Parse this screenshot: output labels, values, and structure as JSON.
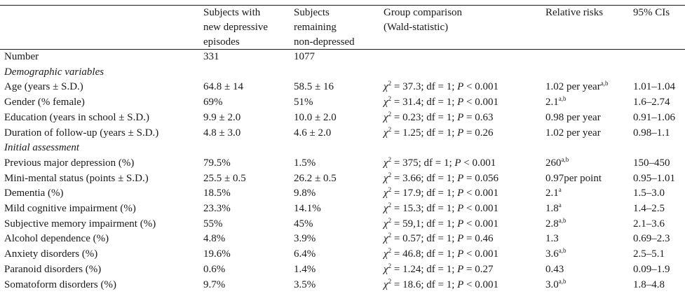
{
  "table": {
    "headers": [
      {
        "lines": []
      },
      {
        "lines": [
          "Subjects with",
          "new depressive",
          "episodes"
        ]
      },
      {
        "lines": [
          "Subjects",
          "remaining",
          "non-depressed"
        ]
      },
      {
        "lines": [
          "Group comparison",
          "(Wald-statistic)"
        ]
      },
      {
        "lines": [
          "Relative risks"
        ]
      },
      {
        "lines": [
          "95% CIs"
        ]
      }
    ],
    "rows": [
      {
        "type": "data",
        "label": "Number",
        "new": "331",
        "remaining": "1077",
        "chi": "",
        "df": "",
        "p_op": "",
        "p": "",
        "rr": "",
        "rr_sup": "",
        "ci": ""
      },
      {
        "type": "section",
        "label": "Demographic variables"
      },
      {
        "type": "data",
        "label": "Age (years ± S.D.)",
        "new": "64.8 ± 14",
        "remaining": "58.5 ± 16",
        "chi": "37.3",
        "df": "1",
        "p_op": "<",
        "p": "0.001",
        "rr": "1.02 per year",
        "rr_sup": "a,b",
        "ci": "1.01–1.04"
      },
      {
        "type": "data",
        "label": "Gender (% female)",
        "new": "69%",
        "remaining": "51%",
        "chi": "31.4",
        "df": "1",
        "p_op": "<",
        "p": "0.001",
        "rr": "2.1",
        "rr_sup": "a,b",
        "ci": "1.6–2.74"
      },
      {
        "type": "data",
        "label": "Education (years in school ± S.D.)",
        "new": "9.9 ± 2.0",
        "remaining": "10.0 ± 2.0",
        "chi": "0.23",
        "df": "1",
        "p_op": "=",
        "p": "0.63",
        "rr": "0.98 per year",
        "rr_sup": "",
        "ci": "0.91–1.06"
      },
      {
        "type": "data",
        "label": "Duration of follow-up (years ± S.D.)",
        "new": "4.8 ± 3.0",
        "remaining": "4.6 ± 2.0",
        "chi": "1.25",
        "df": "1",
        "p_op": "=",
        "p": "0.26",
        "rr": "1.02 per year",
        "rr_sup": "",
        "ci": "0.98–1.1"
      },
      {
        "type": "section",
        "label": "Initial assessment"
      },
      {
        "type": "data",
        "label": "Previous major depression (%)",
        "new": "79.5%",
        "remaining": "1.5%",
        "chi": "375",
        "df": "1",
        "p_op": "<",
        "p": "0.001",
        "rr": "260",
        "rr_sup": "a,b",
        "ci": "150–450"
      },
      {
        "type": "data",
        "label": "Mini-mental status (points ± S.D.)",
        "new": "25.5 ± 0.5",
        "remaining": "26.2 ± 0.5",
        "chi": "3.66",
        "df": "1",
        "p_op": "=",
        "p": "0.056",
        "rr": "0.97per point",
        "rr_sup": "",
        "ci": "0.95–1.01"
      },
      {
        "type": "data",
        "label": "Dementia (%)",
        "new": "18.5%",
        "remaining": "9.8%",
        "chi": "17.9",
        "df": "1",
        "p_op": "<",
        "p": "0.001",
        "rr": "2.1",
        "rr_sup": "a",
        "ci": "1.5–3.0"
      },
      {
        "type": "data",
        "label": "Mild cognitive impairment (%)",
        "new": "23.3%",
        "remaining": "14.1%",
        "chi": "15.3",
        "df": "1",
        "p_op": "<",
        "p": "0.001",
        "rr": "1.8",
        "rr_sup": "a",
        "ci": "1.4–2.5"
      },
      {
        "type": "data",
        "label": "Subjective memory impairment (%)",
        "new": "55%",
        "remaining": "45%",
        "chi": "59,1",
        "df": "1",
        "p_op": "<",
        "p": "0.001",
        "rr": "2.8",
        "rr_sup": "a,b",
        "ci": "2.1–3.6"
      },
      {
        "type": "data",
        "label": "Alcohol dependence (%)",
        "new": "4.8%",
        "remaining": "3.9%",
        "chi": "0.57",
        "df": "1",
        "p_op": "=",
        "p": "0.46",
        "rr": "1.3",
        "rr_sup": "",
        "ci": "0.69–2.3"
      },
      {
        "type": "data",
        "label": "Anxiety disorders (%)",
        "new": "19.6%",
        "remaining": "6.4%",
        "chi": "46.8",
        "df": "1",
        "p_op": "<",
        "p": "0.001",
        "rr": "3.6",
        "rr_sup": "a,b",
        "ci": "2.5–5.1"
      },
      {
        "type": "data",
        "label": "Paranoid disorders (%)",
        "new": "0.6%",
        "remaining": "1.4%",
        "chi": "1.24",
        "df": "1",
        "p_op": "=",
        "p": "0.27",
        "rr": "0.43",
        "rr_sup": "",
        "ci": "0.09–1.9"
      },
      {
        "type": "data",
        "label": "Somatoform disorders (%)",
        "new": "9.7%",
        "remaining": "3.5%",
        "chi": "18.6",
        "df": "1",
        "p_op": "<",
        "p": "0.001",
        "rr": "3.0",
        "rr_sup": "a,b",
        "ci": "1.8–4.8"
      }
    ]
  },
  "stat_labels": {
    "chi_symbol": "χ",
    "chi_exp": "2",
    "df_label": "df",
    "p_label": "P"
  }
}
